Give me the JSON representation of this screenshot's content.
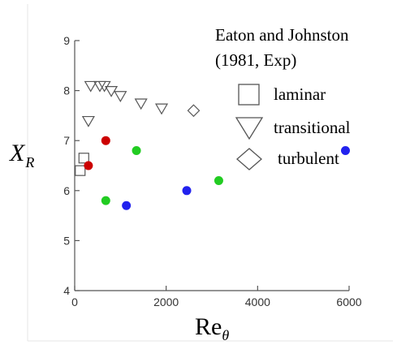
{
  "chart_data": {
    "type": "scatter",
    "xlabel": "Re",
    "xlabel_subscript": "θ",
    "ylabel": "X",
    "ylabel_subscript": "R",
    "xlim": [
      0,
      6000
    ],
    "ylim": [
      4,
      9
    ],
    "xticks": [
      "0",
      "2000",
      "4000",
      "6000"
    ],
    "yticks": [
      "4",
      "5",
      "6",
      "7",
      "8",
      "9"
    ],
    "grid": false,
    "legend": {
      "placement": "top-right",
      "title_line1": "Eaton and Johnston",
      "title_line2": "(1981, Exp)",
      "entries": [
        "laminar",
        "transitional",
        "turbulent"
      ]
    },
    "series": [
      {
        "name": "laminar",
        "marker": "square-open",
        "color": "#555555",
        "points": [
          [
            120,
            6.4
          ],
          [
            200,
            6.65
          ]
        ]
      },
      {
        "name": "transitional",
        "marker": "triangle-down-open",
        "color": "#555555",
        "points": [
          [
            300,
            7.4
          ],
          [
            350,
            8.1
          ],
          [
            550,
            8.1
          ],
          [
            650,
            8.1
          ],
          [
            800,
            8.0
          ],
          [
            1000,
            7.9
          ],
          [
            1450,
            7.75
          ],
          [
            1900,
            7.65
          ]
        ]
      },
      {
        "name": "turbulent",
        "marker": "diamond-open",
        "color": "#555555",
        "points": [
          [
            2600,
            7.6
          ]
        ]
      },
      {
        "marker": "circle-filled",
        "color": "#cc0000",
        "points": [
          [
            300,
            6.5
          ],
          [
            680,
            7.0
          ]
        ]
      },
      {
        "marker": "circle-filled",
        "color": "#22cc22",
        "points": [
          [
            680,
            5.8
          ],
          [
            1350,
            6.8
          ],
          [
            3150,
            6.2
          ]
        ]
      },
      {
        "marker": "circle-filled",
        "color": "#2222ee",
        "points": [
          [
            1130,
            5.7
          ],
          [
            2450,
            6.0
          ],
          [
            5920,
            6.8
          ]
        ]
      }
    ]
  }
}
